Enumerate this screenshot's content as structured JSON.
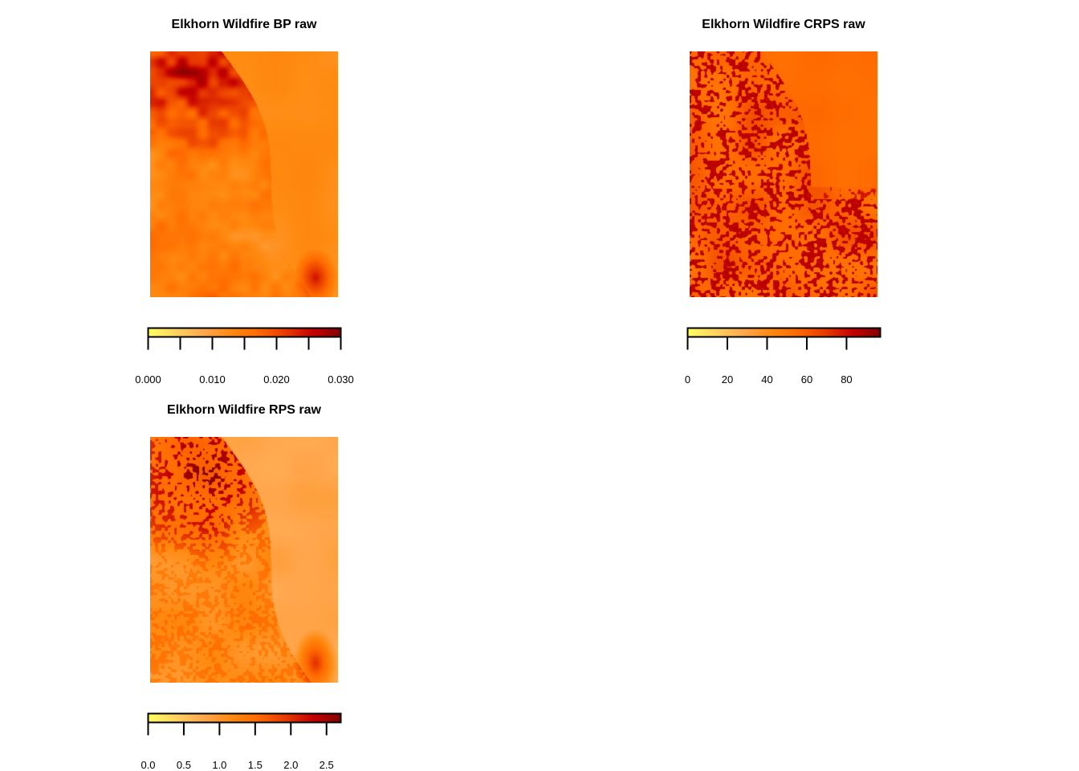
{
  "palette": [
    "#FFFF60",
    "#FFD460",
    "#FFA850",
    "#FF8A10",
    "#FF6A00",
    "#E83A00",
    "#C40000",
    "#800000"
  ],
  "panels": [
    {
      "id": "bp",
      "title": "Elkhorn Wildfire BP raw",
      "legend": {
        "min": 0,
        "max": 0.03,
        "ticks": [
          0.0,
          0.005,
          0.01,
          0.015,
          0.02,
          0.025,
          0.03
        ],
        "tick_labels": [
          "0.000",
          "",
          "0.010",
          "",
          "0.020",
          "",
          "0.030"
        ]
      },
      "raster": {
        "style": "smooth",
        "base_level": 0.45,
        "dark_region": "top-left",
        "river_from": "upper-middle to lower-right"
      }
    },
    {
      "id": "crps",
      "title": "Elkhorn Wildfire CRPS raw",
      "legend": {
        "min": 0,
        "max": 97,
        "ticks": [
          0,
          20,
          40,
          60,
          80
        ],
        "tick_labels": [
          "0",
          "20",
          "40",
          "60",
          "80"
        ]
      },
      "raster": {
        "style": "speckled",
        "base_level": 0.55,
        "dark_region": "left and lower-right",
        "river_from": "upper-middle to lower-right"
      }
    },
    {
      "id": "rps",
      "title": "Elkhorn Wildfire RPS raw",
      "legend": {
        "min": 0,
        "max": 2.7,
        "ticks": [
          0.0,
          0.5,
          1.0,
          1.5,
          2.0,
          2.5
        ],
        "tick_labels": [
          "0.0",
          "0.5",
          "1.0",
          "1.5",
          "2.0",
          "2.5"
        ]
      },
      "raster": {
        "style": "mottled",
        "base_level": 0.4,
        "dark_region": "top-left",
        "river_from": "upper-middle to lower-right"
      }
    }
  ]
}
